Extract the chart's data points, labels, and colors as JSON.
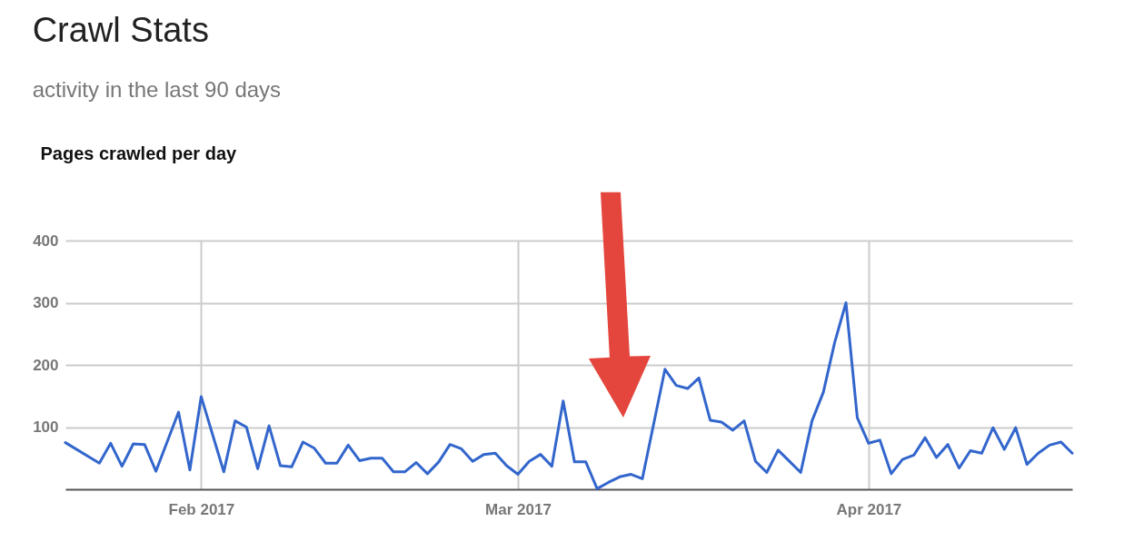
{
  "chart_data": {
    "type": "line",
    "title": "Crawl Stats",
    "subtitle": "activity in the last 90 days",
    "ylabel": "Pages crawled per day",
    "x": [
      "2017-01-20",
      "2017-01-23",
      "2017-01-24",
      "2017-01-25",
      "2017-01-26",
      "2017-01-27",
      "2017-01-28",
      "2017-01-30",
      "2017-01-31",
      "2017-02-01",
      "2017-02-03",
      "2017-02-04",
      "2017-02-05",
      "2017-02-06",
      "2017-02-07",
      "2017-02-08",
      "2017-02-09",
      "2017-02-10",
      "2017-02-11",
      "2017-02-12",
      "2017-02-13",
      "2017-02-14",
      "2017-02-15",
      "2017-02-16",
      "2017-02-17",
      "2017-02-18",
      "2017-02-19",
      "2017-02-20",
      "2017-02-21",
      "2017-02-22",
      "2017-02-23",
      "2017-02-24",
      "2017-02-25",
      "2017-02-26",
      "2017-02-27",
      "2017-02-28",
      "2017-03-01",
      "2017-03-02",
      "2017-03-03",
      "2017-03-04",
      "2017-03-05",
      "2017-03-06",
      "2017-03-07",
      "2017-03-08",
      "2017-03-09",
      "2017-03-10",
      "2017-03-11",
      "2017-03-12",
      "2017-03-14",
      "2017-03-15",
      "2017-03-16",
      "2017-03-17",
      "2017-03-18",
      "2017-03-19",
      "2017-03-20",
      "2017-03-21",
      "2017-03-22",
      "2017-03-23",
      "2017-03-24",
      "2017-03-25",
      "2017-03-26",
      "2017-03-27",
      "2017-03-28",
      "2017-03-29",
      "2017-03-30",
      "2017-03-31",
      "2017-04-01",
      "2017-04-02",
      "2017-04-03",
      "2017-04-04",
      "2017-04-05",
      "2017-04-06",
      "2017-04-07",
      "2017-04-08",
      "2017-04-09",
      "2017-04-10",
      "2017-04-11",
      "2017-04-12",
      "2017-04-13",
      "2017-04-14",
      "2017-04-15",
      "2017-04-16",
      "2017-04-17",
      "2017-04-18",
      "2017-04-19"
    ],
    "series": [
      {
        "color": "#3366cc",
        "values": [
          75,
          42,
          74,
          37,
          73,
          72,
          29,
          124,
          31,
          149,
          28,
          110,
          100,
          33,
          102,
          38,
          36,
          76,
          66,
          42,
          42,
          71,
          46,
          50,
          50,
          28,
          28,
          43,
          25,
          44,
          72,
          65,
          45,
          56,
          58,
          38,
          24,
          45,
          56,
          37,
          142,
          44,
          44,
          1,
          11,
          20,
          24,
          17,
          193,
          167,
          162,
          179,
          111,
          108,
          95,
          110,
          45,
          27,
          63,
          45,
          27,
          110,
          156,
          236,
          300,
          115,
          74,
          79,
          25,
          48,
          55,
          83,
          51,
          72,
          34,
          62,
          58,
          99,
          64,
          99,
          40,
          58,
          71,
          76,
          58
        ]
      }
    ],
    "xlim": [
      "2017-01-20",
      "2017-04-19"
    ],
    "xticks": [
      {
        "value": "2017-02-01",
        "label": "Feb 2017"
      },
      {
        "value": "2017-03-01",
        "label": "Mar 2017"
      },
      {
        "value": "2017-04-01",
        "label": "Apr 2017"
      }
    ],
    "ylim": [
      0,
      400
    ],
    "yticks": [
      100,
      200,
      300,
      400
    ],
    "grid": true,
    "line_style": "solid"
  }
}
